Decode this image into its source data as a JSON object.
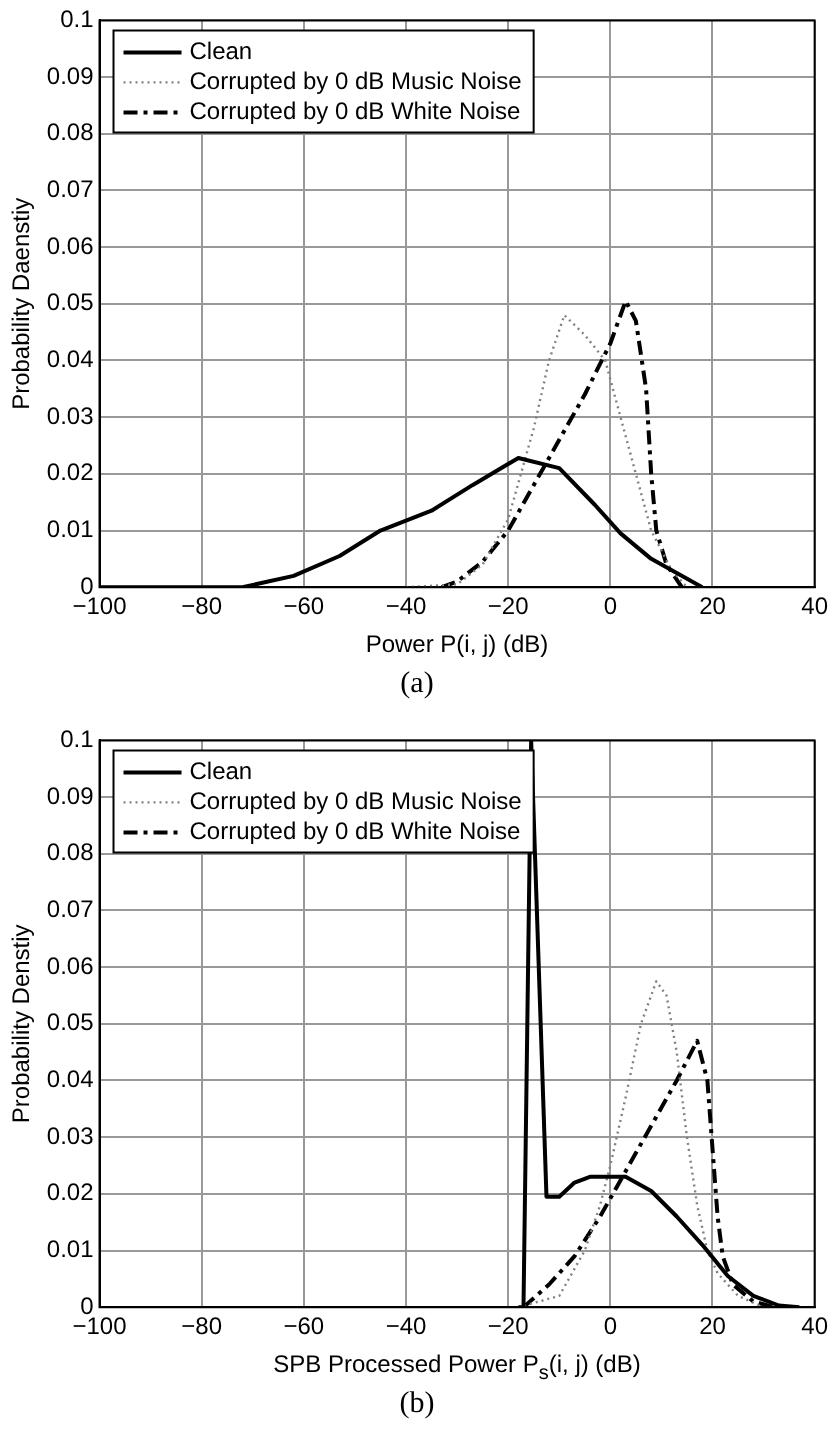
{
  "chart_data": [
    {
      "type": "line",
      "xlabel": "Power P(i, j) (dB)",
      "ylabel": "Probability Daenstiy",
      "annotations": [
        "(a)"
      ],
      "xlim": [
        -100,
        40
      ],
      "ylim": [
        0,
        0.1
      ],
      "xticks": [
        {
          "value": -100,
          "label": "−100"
        },
        {
          "value": -80,
          "label": "−80"
        },
        {
          "value": -60,
          "label": "−60"
        },
        {
          "value": -40,
          "label": "−40"
        },
        {
          "value": -20,
          "label": "−20"
        },
        0,
        20,
        40
      ],
      "yticks": [
        0,
        0.01,
        0.02,
        0.03,
        0.04,
        0.05,
        0.06,
        0.07,
        0.08,
        0.09,
        0.1
      ],
      "grid": true,
      "legend": "top left",
      "marker": "none",
      "series": [
        {
          "name": "Clean",
          "color": "#000000",
          "line_style": "solid",
          "x": [
            -100,
            -72,
            -62,
            -53,
            -45,
            -35,
            -27,
            -18,
            -10,
            -3,
            2,
            8,
            13,
            18
          ],
          "values": [
            0,
            0,
            0.002,
            0.0055,
            0.01,
            0.0135,
            0.018,
            0.0228,
            0.021,
            0.0145,
            0.0095,
            0.005,
            0.0025,
            0
          ]
        },
        {
          "name": "Corrupted by 0 dB Music Noise",
          "color": "#808080",
          "line_style": "dotted",
          "x": [
            -40,
            -30,
            -25,
            -20,
            -15,
            -12,
            -9,
            -5,
            -1,
            2,
            5,
            8,
            12,
            15
          ],
          "values": [
            0,
            0.0005,
            0.004,
            0.012,
            0.028,
            0.04,
            0.048,
            0.0445,
            0.04,
            0.03,
            0.02,
            0.01,
            0.003,
            0
          ]
        },
        {
          "name": "Corrupted by 0 dB White Noise",
          "color": "#000000",
          "line_style": "dashed",
          "x": [
            -33,
            -30,
            -25,
            -20,
            -15,
            -10,
            -5,
            0,
            3,
            5,
            7,
            8,
            9,
            11,
            14
          ],
          "values": [
            0,
            0.001,
            0.0045,
            0.01,
            0.018,
            0.026,
            0.034,
            0.043,
            0.0505,
            0.047,
            0.035,
            0.02,
            0.01,
            0.004,
            0
          ]
        }
      ]
    },
    {
      "type": "line",
      "xlabel": "SPB Processed Power P$_{s}$(i, j) (dB)",
      "ylabel": "Probability Denstiy",
      "annotations": [
        "(b)"
      ],
      "xlim": [
        -100,
        40
      ],
      "ylim": [
        0,
        0.1
      ],
      "xticks": [
        {
          "value": -100,
          "label": "−100"
        },
        {
          "value": -80,
          "label": "−80"
        },
        {
          "value": -60,
          "label": "−60"
        },
        {
          "value": -40,
          "label": "−40"
        },
        {
          "value": -20,
          "label": "−20"
        },
        0,
        20,
        40
      ],
      "yticks": [
        0,
        0.01,
        0.02,
        0.03,
        0.04,
        0.05,
        0.06,
        0.07,
        0.08,
        0.09,
        0.1
      ],
      "grid": true,
      "legend": "top left",
      "marker": "none",
      "series": [
        {
          "name": "Clean",
          "color": "#000000",
          "line_style": "solid",
          "x": [
            -18,
            -17,
            -15.5,
            -12.5,
            -10,
            -7,
            -4,
            0,
            3,
            8,
            13,
            18,
            23,
            28,
            33,
            37
          ],
          "values": [
            0,
            0,
            0.1,
            0.0195,
            0.0195,
            0.022,
            0.023,
            0.023,
            0.023,
            0.0205,
            0.016,
            0.011,
            0.0055,
            0.002,
            0.0003,
            0
          ]
        },
        {
          "name": "Corrupted by 0 dB Music Noise",
          "color": "#808080",
          "line_style": "dotted",
          "x": [
            -18,
            -10,
            -5,
            -2,
            0,
            3,
            6,
            9,
            11,
            13,
            15,
            17,
            19,
            21,
            25,
            30
          ],
          "values": [
            0,
            0.002,
            0.01,
            0.018,
            0.025,
            0.037,
            0.05,
            0.0575,
            0.055,
            0.045,
            0.03,
            0.018,
            0.01,
            0.006,
            0.002,
            0
          ]
        },
        {
          "name": "Corrupted by 0 dB White Noise",
          "color": "#000000",
          "line_style": "dashed",
          "x": [
            -17,
            -12,
            -7,
            -2,
            3,
            8,
            13,
            17,
            19,
            20,
            21,
            22,
            24,
            28,
            32
          ],
          "values": [
            0,
            0.004,
            0.009,
            0.016,
            0.024,
            0.032,
            0.04,
            0.047,
            0.04,
            0.028,
            0.016,
            0.009,
            0.004,
            0.001,
            0
          ]
        }
      ]
    }
  ]
}
